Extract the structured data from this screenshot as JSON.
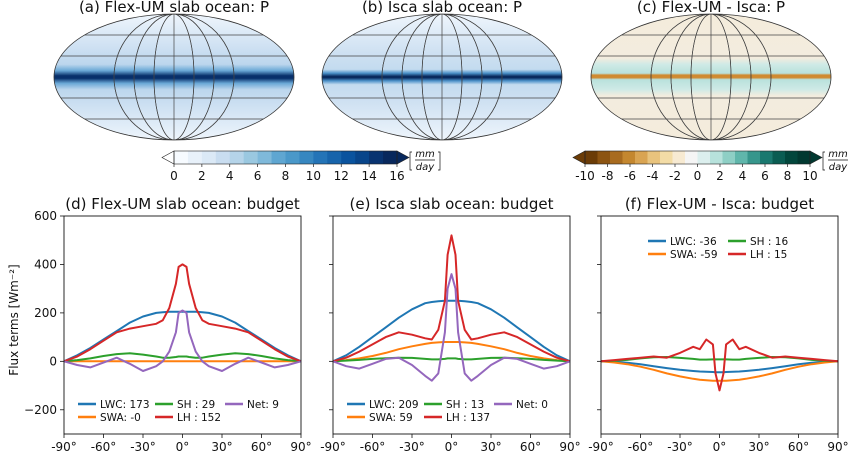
{
  "maps": [
    {
      "title": "(a) Flex-UM slab ocean: P"
    },
    {
      "title": "(b) Isca slab ocean: P"
    },
    {
      "title": "(c) Flex-UM - Isca: P"
    }
  ],
  "colorbars": [
    {
      "ticks": [
        "0",
        "2",
        "4",
        "6",
        "8",
        "10",
        "12",
        "14",
        "16"
      ],
      "unit_num": "mm",
      "unit_den": "day",
      "colors": [
        "#f7fbff",
        "#e8f1fa",
        "#dbe9f6",
        "#c9ddf0",
        "#b5d4e9",
        "#9ac8e0",
        "#7fb9da",
        "#5fa6d1",
        "#4a98c9",
        "#3787c0",
        "#2474b7",
        "#1764ab",
        "#0a539e",
        "#08458a",
        "#083370",
        "#08285c"
      ]
    },
    {
      "ticks": [
        "-10",
        "-8",
        "-6",
        "-4",
        "-2",
        "0",
        "2",
        "4",
        "6",
        "8",
        "10"
      ],
      "unit_num": "mm",
      "unit_den": "day",
      "colors": [
        "#6b3c07",
        "#8c5412",
        "#a86b1f",
        "#c4872f",
        "#d9a452",
        "#e8c37d",
        "#f3dca6",
        "#f7ead2",
        "#f5f5f5",
        "#dcefee",
        "#b7e2dc",
        "#8ecfc5",
        "#60b6ab",
        "#37968c",
        "#1a786f",
        "#0a5c52",
        "#02463c",
        "#013830"
      ]
    }
  ],
  "panel_titles": [
    "(d) Flex-UM slab ocean: budget",
    "(e) Isca slab ocean: budget",
    "(f) Flex-UM - Isca: budget"
  ],
  "ylabel": "Flux terms [Wm⁻²]",
  "yticks": [
    "600",
    "400",
    "200",
    "0",
    "−200"
  ],
  "xticks": [
    "-90°",
    "-60°",
    "-30°",
    "0°",
    "30°",
    "60°",
    "90°"
  ],
  "colors": {
    "LWC": "#1f77b4",
    "SWA": "#ff7f0e",
    "SH": "#2ca02c",
    "LH": "#d62728",
    "Net": "#9467bd"
  },
  "legends": [
    [
      {
        "label": "LWC:  173",
        "color": "#1f77b4"
      },
      {
        "label": "SWA:   -0",
        "color": "#ff7f0e"
      },
      {
        "label": "SH :   29",
        "color": "#2ca02c"
      },
      {
        "label": "LH :  152",
        "color": "#d62728"
      },
      {
        "label": "Net:    9",
        "color": "#9467bd"
      }
    ],
    [
      {
        "label": "LWC:  209",
        "color": "#1f77b4"
      },
      {
        "label": "SWA:   59",
        "color": "#ff7f0e"
      },
      {
        "label": "SH :   13",
        "color": "#2ca02c"
      },
      {
        "label": "LH :  137",
        "color": "#d62728"
      },
      {
        "label": "Net:    0",
        "color": "#9467bd"
      }
    ],
    [
      {
        "label": "LWC:  -36",
        "color": "#1f77b4"
      },
      {
        "label": "SWA:  -59",
        "color": "#ff7f0e"
      },
      {
        "label": "SH :   16",
        "color": "#2ca02c"
      },
      {
        "label": "LH :   15",
        "color": "#d62728"
      }
    ]
  ],
  "chart_data": [
    {
      "type": "line",
      "title": "(d) Flex-UM slab ocean: budget",
      "ylabel": "Flux terms [Wm⁻²]",
      "xlim": [
        -90,
        90
      ],
      "ylim": [
        -300,
        600
      ],
      "x": [
        -90,
        -80,
        -70,
        -60,
        -50,
        -40,
        -30,
        -20,
        -15,
        -10,
        -5,
        -3,
        0,
        3,
        5,
        10,
        15,
        20,
        30,
        40,
        50,
        60,
        70,
        80,
        90
      ],
      "series": [
        {
          "name": "LWC",
          "color": "#1f77b4",
          "values": [
            0,
            25,
            55,
            90,
            125,
            160,
            185,
            200,
            203,
            205,
            205,
            205,
            205,
            205,
            205,
            205,
            203,
            200,
            185,
            160,
            125,
            90,
            55,
            25,
            0
          ]
        },
        {
          "name": "SWA",
          "color": "#ff7f0e",
          "values": [
            0,
            0,
            0,
            0,
            0,
            0,
            0,
            0,
            0,
            0,
            0,
            0,
            0,
            0,
            0,
            0,
            0,
            0,
            0,
            0,
            0,
            0,
            0,
            0,
            0
          ]
        },
        {
          "name": "SH",
          "color": "#2ca02c",
          "values": [
            0,
            5,
            12,
            22,
            30,
            33,
            28,
            20,
            15,
            15,
            18,
            20,
            20,
            20,
            18,
            15,
            15,
            20,
            28,
            33,
            30,
            22,
            12,
            5,
            0
          ]
        },
        {
          "name": "LH",
          "color": "#d62728",
          "values": [
            0,
            20,
            50,
            85,
            120,
            135,
            145,
            155,
            170,
            220,
            320,
            390,
            400,
            390,
            320,
            220,
            170,
            155,
            145,
            135,
            120,
            85,
            50,
            20,
            0
          ]
        },
        {
          "name": "Net",
          "color": "#9467bd",
          "values": [
            0,
            -15,
            -25,
            -5,
            15,
            -10,
            -40,
            -20,
            0,
            40,
            120,
            200,
            210,
            200,
            120,
            40,
            0,
            -20,
            -40,
            -10,
            15,
            -5,
            -25,
            -15,
            0
          ]
        }
      ]
    },
    {
      "type": "line",
      "title": "(e) Isca slab ocean: budget",
      "xlim": [
        -90,
        90
      ],
      "ylim": [
        -300,
        600
      ],
      "x": [
        -90,
        -80,
        -70,
        -60,
        -50,
        -40,
        -30,
        -20,
        -15,
        -10,
        -5,
        -3,
        0,
        3,
        5,
        10,
        15,
        20,
        30,
        40,
        50,
        60,
        70,
        80,
        90
      ],
      "series": [
        {
          "name": "LWC",
          "color": "#1f77b4",
          "values": [
            0,
            25,
            60,
            100,
            140,
            180,
            215,
            240,
            245,
            248,
            250,
            250,
            250,
            250,
            250,
            248,
            245,
            240,
            215,
            180,
            140,
            100,
            60,
            25,
            0
          ]
        },
        {
          "name": "SWA",
          "color": "#ff7f0e",
          "values": [
            0,
            5,
            12,
            22,
            35,
            50,
            62,
            72,
            76,
            78,
            80,
            80,
            80,
            80,
            80,
            78,
            76,
            72,
            62,
            50,
            35,
            22,
            12,
            5,
            0
          ]
        },
        {
          "name": "SH",
          "color": "#2ca02c",
          "values": [
            0,
            3,
            6,
            10,
            13,
            15,
            14,
            10,
            8,
            8,
            10,
            12,
            12,
            12,
            10,
            8,
            8,
            10,
            14,
            15,
            13,
            10,
            6,
            3,
            0
          ]
        },
        {
          "name": "LH",
          "color": "#d62728",
          "values": [
            0,
            15,
            40,
            70,
            100,
            120,
            110,
            95,
            90,
            130,
            250,
            440,
            520,
            440,
            250,
            130,
            90,
            95,
            110,
            120,
            100,
            70,
            40,
            15,
            0
          ]
        },
        {
          "name": "Net",
          "color": "#9467bd",
          "values": [
            0,
            -20,
            -30,
            -10,
            10,
            15,
            -15,
            -60,
            -80,
            -50,
            120,
            300,
            360,
            300,
            120,
            -50,
            -80,
            -60,
            -15,
            15,
            10,
            -10,
            -30,
            -20,
            0
          ]
        }
      ]
    },
    {
      "type": "line",
      "title": "(f) Flex-UM - Isca: budget",
      "xlim": [
        -90,
        90
      ],
      "ylim": [
        -300,
        600
      ],
      "x": [
        -90,
        -80,
        -70,
        -60,
        -50,
        -40,
        -30,
        -20,
        -15,
        -10,
        -5,
        -3,
        0,
        3,
        5,
        10,
        15,
        20,
        30,
        40,
        50,
        60,
        70,
        80,
        90
      ],
      "series": [
        {
          "name": "LWC",
          "color": "#1f77b4",
          "values": [
            0,
            -2,
            -6,
            -12,
            -20,
            -28,
            -35,
            -40,
            -42,
            -43,
            -44,
            -45,
            -45,
            -45,
            -44,
            -43,
            -42,
            -40,
            -35,
            -28,
            -20,
            -12,
            -6,
            -2,
            0
          ]
        },
        {
          "name": "SWA",
          "color": "#ff7f0e",
          "values": [
            0,
            -5,
            -12,
            -22,
            -35,
            -50,
            -62,
            -72,
            -76,
            -78,
            -80,
            -80,
            -80,
            -80,
            -80,
            -78,
            -76,
            -72,
            -62,
            -50,
            -35,
            -22,
            -12,
            -5,
            0
          ]
        },
        {
          "name": "SH",
          "color": "#2ca02c",
          "values": [
            0,
            2,
            6,
            12,
            17,
            18,
            14,
            10,
            7,
            7,
            8,
            8,
            8,
            8,
            8,
            7,
            7,
            10,
            14,
            18,
            17,
            12,
            6,
            2,
            0
          ]
        },
        {
          "name": "LH",
          "color": "#d62728",
          "values": [
            0,
            5,
            10,
            15,
            20,
            15,
            35,
            60,
            50,
            90,
            70,
            -50,
            -120,
            -50,
            70,
            90,
            50,
            60,
            35,
            15,
            20,
            15,
            10,
            5,
            0
          ]
        }
      ]
    }
  ]
}
